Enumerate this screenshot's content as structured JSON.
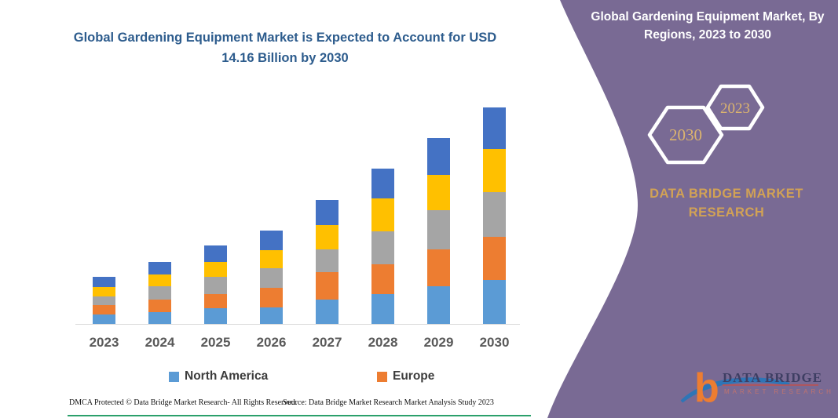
{
  "left_panel": {
    "chart_title": "Global Gardening Equipment Market is Expected to Account for USD 14.16 Billion by 2030"
  },
  "chart_data": {
    "type": "bar",
    "stacked": true,
    "title": "Global Gardening Equipment Market is Expected to Account for USD 14.16 Billion by 2030",
    "xlabel": "",
    "ylabel": "",
    "y_axis_visible": false,
    "gridlines": false,
    "units": "relative height in px (no y-axis scale shown in image)",
    "categories": [
      "2023",
      "2024",
      "2025",
      "2026",
      "2027",
      "2028",
      "2029",
      "2030"
    ],
    "series": [
      {
        "name": "North America",
        "color": "#5B9BD5",
        "values": [
          12,
          15,
          20,
          21,
          31,
          38,
          48,
          56
        ]
      },
      {
        "name": "Europe",
        "color": "#ED7D31",
        "values": [
          12,
          16,
          18,
          25,
          35,
          38,
          47,
          55
        ]
      },
      {
        "name": "unlabeled-gray",
        "color": "#A5A5A5",
        "values": [
          11,
          17,
          22,
          25,
          29,
          42,
          50,
          57
        ]
      },
      {
        "name": "unlabeled-yellow",
        "color": "#FFC000",
        "values": [
          12,
          15,
          19,
          23,
          31,
          42,
          45,
          55
        ]
      },
      {
        "name": "unlabeled-dark-blue",
        "color": "#4472C4",
        "values": [
          13,
          16,
          21,
          25,
          32,
          38,
          47,
          53
        ]
      }
    ],
    "bar_totals_relative": [
      60,
      79,
      100,
      119,
      158,
      198,
      237,
      276
    ],
    "stated_value": "USD 14.16 Billion by 2030",
    "legend_position": "bottom",
    "legend_visible_entries": [
      "North America",
      "Europe"
    ]
  },
  "legend": {
    "items": [
      {
        "label": "North America",
        "color": "#5B9BD5"
      },
      {
        "label": "Europe",
        "color": "#ED7D31"
      }
    ]
  },
  "footer": {
    "dmca": "DMCA Protected © Data Bridge Market Research-  All Rights Reserved.",
    "source": "Source: Data Bridge Market Research  Market Analysis Study 2023"
  },
  "right_panel": {
    "panel_color": "#796A94",
    "title": "Global Gardening Equipment Market, By Regions, 2023 to 2030",
    "hexagons": [
      {
        "label": "2030"
      },
      {
        "label": "2023"
      }
    ],
    "brand": "DATA BRIDGE MARKET RESEARCH",
    "logo": {
      "text_primary": "DATA BRIDGE",
      "text_secondary": "MARKET RESEARCH"
    }
  },
  "layout_colors": {
    "chart_title_blue": "#2d5c8d",
    "axis_gray": "#d9d9d9",
    "x_label_gray": "#595959",
    "gold_text": "#d2a255",
    "bottom_line_green": "#2ba06b"
  }
}
